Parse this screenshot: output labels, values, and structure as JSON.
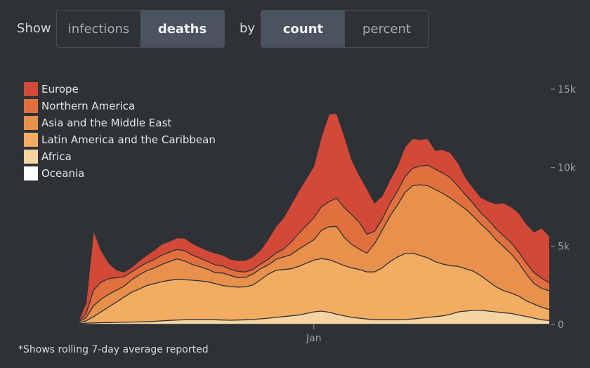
{
  "controls": {
    "show_label": "Show",
    "metric_options": [
      "infections",
      "deaths"
    ],
    "metric_selected": "deaths",
    "by_label": "by",
    "mode_options": [
      "count",
      "percent"
    ],
    "mode_selected": "count"
  },
  "footnote": "*Shows rolling 7-day average reported",
  "colors": {
    "background": "#2e3136",
    "active_button": "#4a545e",
    "Europe": "#d24a37",
    "Northern America": "#e2703f",
    "Asia and the Middle East": "#e8914c",
    "Latin America and the Caribbean": "#f3ad62",
    "Africa": "#f4d5a2",
    "Oceania": "#ffffff"
  },
  "chart_data": {
    "type": "area",
    "stacked": true,
    "title": "",
    "xlabel": "",
    "ylabel": "",
    "x_ticks": [
      {
        "label": "Jan",
        "week": 38
      }
    ],
    "y_ticks": [
      {
        "value": 0,
        "label": "0"
      },
      {
        "value": 5000,
        "label": "5k"
      },
      {
        "value": 10000,
        "label": "10k"
      },
      {
        "value": 15000,
        "label": "15k"
      }
    ],
    "ylim": [
      0,
      15500
    ],
    "xlim": [
      0,
      69
    ],
    "legend_position": "top-left",
    "x": [
      0,
      1,
      2,
      3,
      4,
      5,
      6,
      7,
      8,
      9,
      10,
      11,
      12,
      13,
      14,
      15,
      16,
      17,
      18,
      19,
      20,
      21,
      22,
      23,
      24,
      25,
      26,
      27,
      28,
      29,
      30,
      31,
      32,
      33,
      34,
      35,
      36,
      37,
      38,
      39,
      40,
      41,
      42,
      43,
      44,
      45,
      46,
      47,
      48,
      49,
      50,
      51,
      52,
      53,
      54,
      55,
      56,
      57,
      58,
      59,
      60,
      61,
      62,
      63,
      64,
      65,
      66,
      67,
      68,
      69
    ],
    "series": [
      {
        "name": "Oceania",
        "values": [
          0,
          0,
          0,
          0,
          0,
          0,
          0,
          0,
          0,
          0,
          0,
          0,
          0,
          0,
          0,
          0,
          0,
          0,
          0,
          0,
          0,
          0,
          0,
          0,
          0,
          0,
          0,
          0,
          0,
          0,
          0,
          0,
          0,
          0,
          0,
          0,
          0,
          0,
          0,
          0,
          0,
          0,
          0,
          0,
          0,
          0,
          0,
          0,
          0,
          0,
          0,
          0,
          0,
          0,
          0,
          0,
          0,
          0,
          0,
          0,
          0,
          0,
          0,
          0,
          0,
          0,
          0,
          0,
          0,
          0
        ]
      },
      {
        "name": "Africa",
        "values": [
          0,
          0,
          0,
          0,
          0,
          0,
          20,
          50,
          80,
          100,
          110,
          120,
          130,
          140,
          150,
          160,
          180,
          200,
          230,
          260,
          280,
          300,
          320,
          330,
          320,
          300,
          280,
          270,
          280,
          300,
          320,
          360,
          400,
          450,
          500,
          550,
          600,
          700,
          800,
          850,
          780,
          650,
          550,
          450,
          400,
          350,
          300,
          300,
          300,
          300,
          320,
          350,
          400,
          450,
          500,
          550,
          650,
          800,
          850,
          900,
          900,
          850,
          800,
          750,
          700,
          600,
          500,
          400,
          300,
          250
        ]
      },
      {
        "name": "Latin America and the Caribbean",
        "values": [
          0,
          0,
          0,
          0,
          0,
          0,
          20,
          50,
          150,
          400,
          700,
          1000,
          1300,
          1600,
          1900,
          2100,
          2300,
          2400,
          2500,
          2550,
          2600,
          2550,
          2500,
          2450,
          2400,
          2300,
          2200,
          2150,
          2100,
          2100,
          2200,
          2500,
          2800,
          3000,
          3000,
          3000,
          3100,
          3200,
          3300,
          3350,
          3350,
          3300,
          3200,
          3150,
          3100,
          3000,
          3050,
          3300,
          3700,
          4000,
          4200,
          4200,
          4000,
          3800,
          3500,
          3300,
          3100,
          2900,
          2700,
          2500,
          2200,
          1900,
          1600,
          1400,
          1300,
          1200,
          1000,
          900,
          800,
          700
        ]
      },
      {
        "name": "Asia and the Middle East",
        "values": [
          0,
          0,
          0,
          0,
          0,
          0,
          20,
          50,
          200,
          700,
          800,
          800,
          750,
          700,
          800,
          900,
          950,
          1000,
          1100,
          1200,
          1300,
          1200,
          1000,
          900,
          800,
          700,
          800,
          700,
          600,
          600,
          700,
          700,
          600,
          700,
          800,
          900,
          1100,
          1200,
          1300,
          1800,
          2100,
          2300,
          1800,
          1500,
          1300,
          1200,
          1800,
          2400,
          2900,
          3300,
          3900,
          4300,
          4500,
          4600,
          4600,
          4500,
          4300,
          4000,
          3800,
          3500,
          3300,
          3200,
          3000,
          2800,
          2500,
          2100,
          1700,
          1300,
          1200,
          1200
        ]
      },
      {
        "name": "Northern America",
        "values": [
          0,
          0,
          0,
          0,
          0,
          0,
          20,
          50,
          250,
          1000,
          1100,
          1000,
          800,
          600,
          500,
          500,
          500,
          550,
          600,
          600,
          600,
          650,
          600,
          550,
          500,
          500,
          450,
          400,
          400,
          350,
          300,
          300,
          350,
          400,
          500,
          800,
          1000,
          1200,
          1400,
          1500,
          1600,
          1800,
          1900,
          1900,
          1700,
          1200,
          800,
          700,
          800,
          900,
          1000,
          1100,
          1200,
          1300,
          1300,
          1300,
          1300,
          1100,
          900,
          800,
          700,
          700,
          700,
          700,
          700,
          700,
          700,
          700,
          650,
          500
        ]
      },
      {
        "name": "Europe",
        "values": [
          0,
          0,
          0,
          0,
          0,
          0,
          20,
          50,
          700,
          3800,
          2000,
          1000,
          500,
          300,
          300,
          400,
          500,
          600,
          700,
          700,
          750,
          800,
          750,
          700,
          700,
          750,
          700,
          650,
          700,
          750,
          800,
          900,
          1300,
          1700,
          2000,
          2400,
          2700,
          3000,
          3300,
          4500,
          5600,
          5400,
          4600,
          3500,
          3000,
          2900,
          1800,
          1500,
          1500,
          1600,
          1900,
          1900,
          1700,
          1700,
          1200,
          1500,
          1600,
          1500,
          1100,
          1000,
          1000,
          1200,
          1600,
          2100,
          2300,
          2500,
          2500,
          2600,
          3200,
          3000
        ]
      }
    ]
  }
}
